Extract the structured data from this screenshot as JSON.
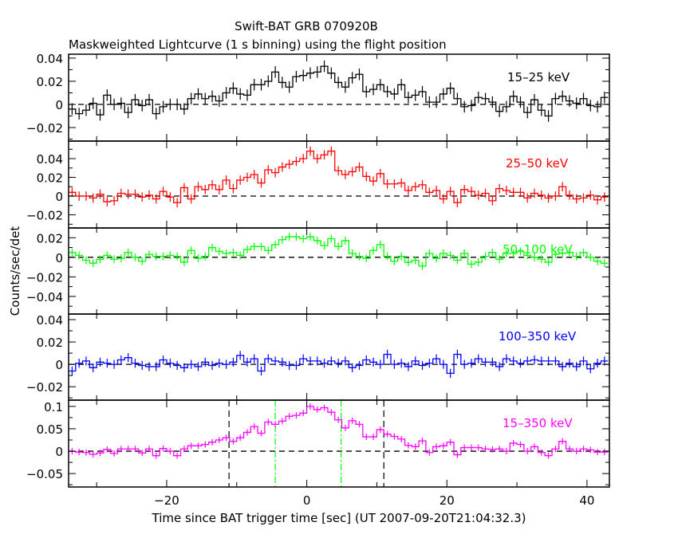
{
  "chart_data": {
    "type": "line",
    "title": "Swift-BAT GRB 070920B",
    "subtitle": "Maskweighted Lightcurve (1 s binning) using the flight position",
    "xlabel": "Time since BAT trigger time [sec] (UT 2007-09-20T21:04:32.3)",
    "ylabel": "Counts/sec/det",
    "xlim": [
      -34,
      43.2
    ],
    "xticks": [
      -20,
      0,
      20,
      40
    ],
    "x": [
      -33.5,
      -32.5,
      -31.5,
      -30.5,
      -29.5,
      -28.5,
      -27.5,
      -26.5,
      -25.5,
      -24.5,
      -23.5,
      -22.5,
      -21.5,
      -20.5,
      -19.5,
      -18.5,
      -17.5,
      -16.5,
      -15.5,
      -14.5,
      -13.5,
      -12.5,
      -11.5,
      -10.5,
      -9.5,
      -8.5,
      -7.5,
      -6.5,
      -5.5,
      -4.5,
      -3.5,
      -2.5,
      -1.5,
      -0.5,
      0.5,
      1.5,
      2.5,
      3.5,
      4.5,
      5.5,
      6.5,
      7.5,
      8.5,
      9.5,
      10.5,
      11.5,
      12.5,
      13.5,
      14.5,
      15.5,
      16.5,
      17.5,
      18.5,
      19.5,
      20.5,
      21.5,
      22.5,
      23.5,
      24.5,
      25.5,
      26.5,
      27.5,
      28.5,
      29.5,
      30.5,
      31.5,
      32.5,
      33.5,
      34.5,
      35.5,
      36.5,
      37.5,
      38.5,
      39.5,
      40.5,
      41.5,
      42.5
    ],
    "panels": [
      {
        "name": "15-25 keV",
        "color": "#000000",
        "ylim": [
          -0.0317,
          0.0434
        ],
        "yticks": [
          -0.02,
          0,
          0.02,
          0.04
        ],
        "yticklabels": [
          "−0.02",
          "0",
          "0.02",
          "0.04"
        ],
        "error": 0.005,
        "values": [
          -0.004,
          -0.008,
          -0.005,
          0.001,
          -0.009,
          0.008,
          0.0,
          0.001,
          -0.007,
          0.004,
          -0.001,
          0.004,
          -0.008,
          -0.002,
          0.0,
          0.0,
          -0.004,
          0.005,
          0.009,
          0.005,
          0.007,
          0.003,
          0.01,
          0.014,
          0.009,
          0.008,
          0.017,
          0.017,
          0.02,
          0.028,
          0.019,
          0.015,
          0.024,
          0.025,
          0.027,
          0.028,
          0.033,
          0.027,
          0.019,
          0.015,
          0.023,
          0.026,
          0.011,
          0.013,
          0.017,
          0.011,
          0.009,
          0.017,
          0.006,
          0.008,
          0.011,
          0.002,
          0.002,
          0.009,
          0.014,
          0.005,
          -0.002,
          -0.001,
          0.006,
          0.005,
          0.002,
          -0.006,
          -0.002,
          0.007,
          0.002,
          -0.007,
          0.004,
          -0.005,
          -0.01,
          0.005,
          0.007,
          0.003,
          0.001,
          0.005,
          -0.001,
          -0.002,
          0.006
        ]
      },
      {
        "name": "25-50 keV",
        "color": "#ff0000",
        "ylim": [
          -0.034,
          0.0587
        ],
        "yticks": [
          -0.02,
          0,
          0.02,
          0.04
        ],
        "yticklabels": [
          "−0.02",
          "0",
          "0.02",
          "0.04"
        ],
        "error": 0.005,
        "values": [
          0.004,
          0.0,
          0.0,
          -0.002,
          0.002,
          -0.006,
          -0.005,
          0.003,
          0.002,
          0.002,
          -0.001,
          0.001,
          -0.003,
          0.005,
          -0.001,
          -0.007,
          0.009,
          -0.003,
          0.01,
          0.007,
          0.012,
          0.007,
          0.017,
          0.008,
          0.017,
          0.02,
          0.023,
          0.014,
          0.028,
          0.025,
          0.031,
          0.034,
          0.037,
          0.04,
          0.048,
          0.04,
          0.044,
          0.048,
          0.027,
          0.023,
          0.026,
          0.031,
          0.021,
          0.016,
          0.024,
          0.013,
          0.013,
          0.014,
          0.006,
          0.01,
          0.012,
          0.004,
          0.006,
          -0.003,
          0.005,
          -0.007,
          0.007,
          0.005,
          0.001,
          0.003,
          -0.005,
          0.008,
          0.006,
          0.004,
          0.004,
          -0.002,
          0.003,
          0.001,
          -0.002,
          0.0,
          0.01,
          0.001,
          -0.003,
          -0.002,
          0.001,
          -0.004,
          -0.001
        ]
      },
      {
        "name": "50-100 keV",
        "color": "#00ff00",
        "ylim": [
          -0.058,
          0.03
        ],
        "yticks": [
          -0.04,
          -0.02,
          0,
          0.02
        ],
        "yticklabels": [
          "−0.04",
          "−0.02",
          "0",
          "0.02"
        ],
        "error": 0.004,
        "values": [
          0.005,
          0.002,
          -0.003,
          -0.006,
          -0.002,
          0.002,
          -0.002,
          -0.001,
          0.005,
          0.0,
          -0.004,
          0.003,
          0.001,
          0.001,
          0.002,
          0.001,
          -0.005,
          0.007,
          -0.001,
          0.001,
          0.01,
          0.006,
          0.004,
          0.005,
          0.002,
          0.008,
          0.011,
          0.011,
          0.007,
          0.013,
          0.018,
          0.021,
          0.021,
          0.019,
          0.021,
          0.017,
          0.012,
          0.019,
          0.011,
          0.017,
          0.004,
          0.001,
          -0.001,
          0.007,
          0.013,
          0.001,
          -0.004,
          0.001,
          -0.005,
          -0.003,
          -0.009,
          0.004,
          -0.001,
          0.004,
          0.002,
          -0.003,
          0.004,
          -0.007,
          -0.005,
          0.001,
          0.005,
          -0.002,
          0.004,
          0.004,
          0.006,
          0.002,
          0.0,
          -0.002,
          -0.005,
          0.003,
          0.004,
          0.005,
          0.001,
          0.005,
          0.0,
          -0.004,
          -0.006
        ]
      },
      {
        "name": "100-350 keV",
        "color": "#0000ff",
        "ylim": [
          -0.032,
          0.045
        ],
        "yticks": [
          -0.02,
          0,
          0.02,
          0.04
        ],
        "yticklabels": [
          "−0.02",
          "0",
          "0.02",
          "0.04"
        ],
        "error": 0.004,
        "values": [
          -0.006,
          0.001,
          0.003,
          -0.003,
          0.002,
          0.001,
          0.0,
          0.004,
          0.006,
          0.001,
          -0.001,
          -0.002,
          -0.002,
          0.004,
          0.001,
          -0.001,
          -0.003,
          0.0,
          -0.002,
          0.002,
          -0.001,
          0.001,
          0.0,
          0.002,
          0.008,
          0.002,
          0.005,
          -0.006,
          0.005,
          0.003,
          0.002,
          -0.001,
          -0.001,
          0.005,
          0.003,
          0.003,
          0.001,
          0.003,
          0.001,
          0.003,
          -0.003,
          -0.001,
          0.004,
          0.002,
          0.0,
          0.009,
          0.0,
          0.001,
          -0.002,
          0.003,
          -0.001,
          0.001,
          0.005,
          0.0,
          -0.008,
          0.009,
          0.0,
          0.001,
          0.005,
          0.002,
          0.002,
          -0.002,
          0.005,
          0.003,
          0.001,
          0.003,
          0.004,
          0.003,
          0.003,
          0.003,
          -0.002,
          0.001,
          -0.002,
          0.003,
          -0.004,
          0.001,
          0.003
        ]
      },
      {
        "name": "15-350 keV",
        "color": "#ff00ff",
        "ylim": [
          -0.08,
          0.114
        ],
        "yticks": [
          -0.05,
          0,
          0.05,
          0.1
        ],
        "yticklabels": [
          "−0.05",
          "0",
          "0.05",
          "0.1"
        ],
        "error": 0.007,
        "values": [
          0.0,
          -0.002,
          -0.003,
          -0.007,
          -0.004,
          0.004,
          -0.005,
          0.005,
          0.005,
          0.005,
          -0.004,
          0.005,
          -0.01,
          0.006,
          0.0,
          -0.01,
          0.005,
          0.012,
          0.012,
          0.015,
          0.02,
          0.025,
          0.03,
          0.022,
          0.03,
          0.042,
          0.055,
          0.04,
          0.065,
          0.06,
          0.067,
          0.078,
          0.08,
          0.085,
          0.1,
          0.093,
          0.097,
          0.087,
          0.07,
          0.052,
          0.068,
          0.06,
          0.032,
          0.032,
          0.048,
          0.038,
          0.033,
          0.027,
          0.013,
          0.01,
          0.023,
          -0.003,
          0.01,
          0.012,
          0.02,
          -0.008,
          0.008,
          0.008,
          0.008,
          0.005,
          0.004,
          0.005,
          0.0,
          0.018,
          0.015,
          0.0,
          0.01,
          -0.003,
          -0.01,
          0.005,
          0.022,
          0.005,
          0.0,
          0.005,
          0.003,
          -0.002,
          -0.002
        ],
        "markers": [
          {
            "x": -11.1,
            "color": "#000000",
            "style": "dashed"
          },
          {
            "x": -4.5,
            "color": "#00ff00",
            "style": "dash-dot"
          },
          {
            "x": 4.9,
            "color": "#00ff00",
            "style": "dash-dot"
          },
          {
            "x": 11.0,
            "color": "#000000",
            "style": "dashed"
          }
        ]
      }
    ],
    "panel_labels": [
      "15–25 keV",
      "25–50 keV",
      "50–100 keV",
      "100–350 keV",
      "15–350 keV"
    ],
    "xticklabels": [
      "−20",
      "0",
      "20",
      "40"
    ],
    "zero_line": true,
    "grid": false
  }
}
